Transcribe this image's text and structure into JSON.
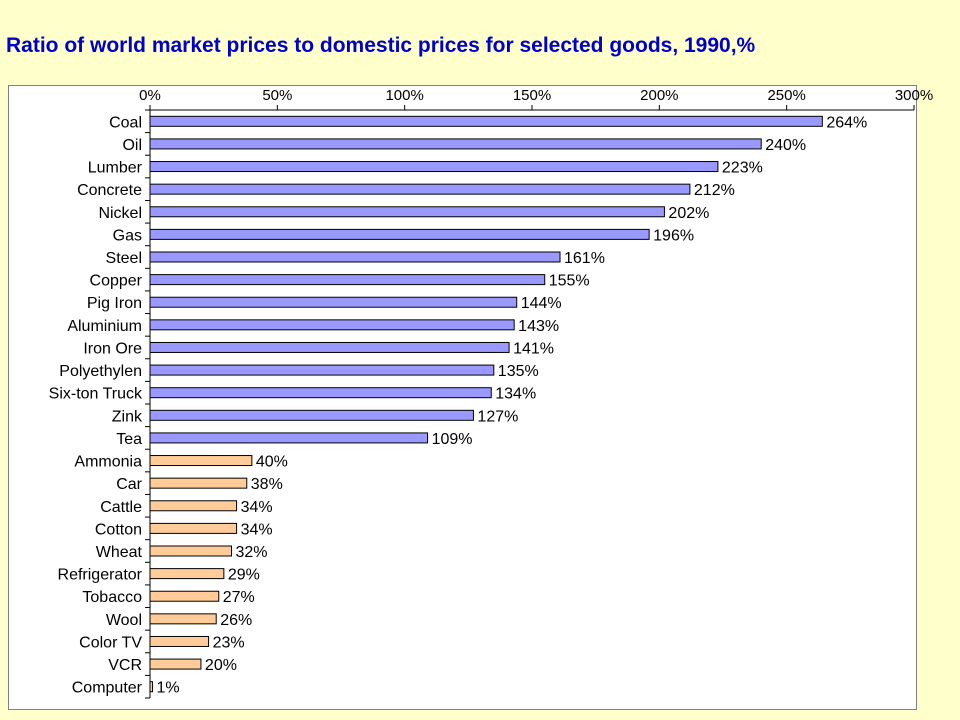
{
  "title": "Ratio of world market prices to domestic prices for selected goods, 1990,%",
  "colors": {
    "background": "#ffffcc",
    "title": "#0000cc",
    "bar_high": "#9999ff",
    "bar_low": "#ffcc99",
    "bar_border": "#000000"
  },
  "chart_data": {
    "type": "bar",
    "orientation": "horizontal",
    "title": "Ratio of world market prices to domestic prices for selected goods, 1990,%",
    "xlabel": "",
    "ylabel": "",
    "xlim": [
      0,
      300
    ],
    "x_ticks": [
      "0%",
      "50%",
      "100%",
      "150%",
      "200%",
      "250%",
      "300%"
    ],
    "x_tick_values": [
      0,
      50,
      100,
      150,
      200,
      250,
      300
    ],
    "x_axis_position": "top",
    "grid": false,
    "legend": "none",
    "categories": [
      "Coal",
      "Oil",
      "Lumber",
      "Concrete",
      "Nickel",
      "Gas",
      "Steel",
      "Copper",
      "Pig Iron",
      "Aluminium",
      "Iron Ore",
      "Polyethylen",
      "Six-ton Truck",
      "Zink",
      "Tea",
      "Ammonia",
      "Car",
      "Cattle",
      "Cotton",
      "Wheat",
      "Refrigerator",
      "Tobacco",
      "Wool",
      "Color TV",
      "VCR",
      "Computer"
    ],
    "values": [
      264,
      240,
      223,
      212,
      202,
      196,
      161,
      155,
      144,
      143,
      141,
      135,
      134,
      127,
      109,
      40,
      38,
      34,
      34,
      32,
      29,
      27,
      26,
      23,
      20,
      1
    ],
    "data_labels": [
      "264%",
      "240%",
      "223%",
      "212%",
      "202%",
      "196%",
      "161%",
      "155%",
      "144%",
      "143%",
      "141%",
      "135%",
      "134%",
      "127%",
      "109%",
      "40%",
      "38%",
      "34%",
      "34%",
      "32%",
      "29%",
      "27%",
      "26%",
      "23%",
      "20%",
      "1%"
    ],
    "bar_colors": [
      "#9999ff",
      "#9999ff",
      "#9999ff",
      "#9999ff",
      "#9999ff",
      "#9999ff",
      "#9999ff",
      "#9999ff",
      "#9999ff",
      "#9999ff",
      "#9999ff",
      "#9999ff",
      "#9999ff",
      "#9999ff",
      "#9999ff",
      "#ffcc99",
      "#ffcc99",
      "#ffcc99",
      "#ffcc99",
      "#ffcc99",
      "#ffcc99",
      "#ffcc99",
      "#ffcc99",
      "#ffcc99",
      "#ffcc99",
      "#ffcc99"
    ]
  }
}
